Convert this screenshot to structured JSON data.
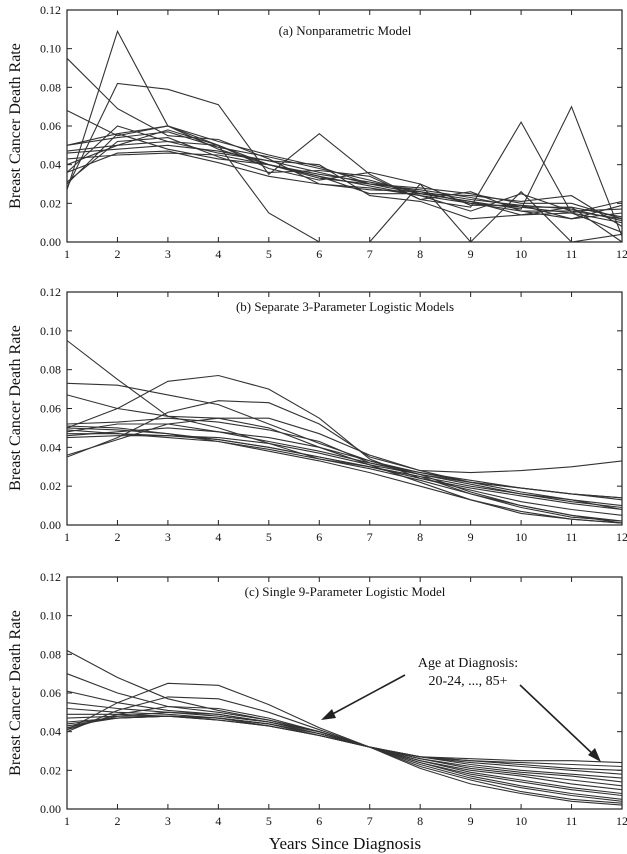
{
  "chart_data": [
    {
      "type": "line",
      "title": "(a)  Nonparametric Model",
      "ylabel": "Breast Cancer Death Rate",
      "xlabel": "",
      "x": [
        1,
        2,
        3,
        4,
        5,
        6,
        7,
        8,
        9,
        10,
        11,
        12
      ],
      "xlim": [
        1,
        12
      ],
      "ylim": [
        0,
        0.12
      ],
      "yticks": [
        "0.00",
        "0.02",
        "0.04",
        "0.06",
        "0.08",
        "0.10",
        "0.12"
      ],
      "grid": false,
      "series": [
        {
          "values": [
            0.027,
            0.109,
            0.06,
            0.05,
            0.015,
            0.0,
            0.0,
            0.03,
            0.0,
            0.026,
            0.0,
            0.004
          ]
        },
        {
          "values": [
            0.095,
            0.069,
            0.055,
            0.053,
            0.043,
            0.03,
            0.027,
            0.026,
            0.02,
            0.018,
            0.015,
            0.005
          ]
        },
        {
          "values": [
            0.028,
            0.082,
            0.079,
            0.071,
            0.035,
            0.056,
            0.035,
            0.022,
            0.018,
            0.062,
            0.015,
            0.021
          ]
        },
        {
          "values": [
            0.068,
            0.055,
            0.06,
            0.048,
            0.04,
            0.033,
            0.03,
            0.025,
            0.021,
            0.017,
            0.07,
            0.003
          ]
        },
        {
          "values": [
            0.036,
            0.06,
            0.052,
            0.046,
            0.042,
            0.04,
            0.024,
            0.021,
            0.012,
            0.014,
            0.015,
            0.01
          ]
        },
        {
          "values": [
            0.05,
            0.056,
            0.06,
            0.052,
            0.045,
            0.039,
            0.03,
            0.028,
            0.025,
            0.02,
            0.02,
            0.012
          ]
        },
        {
          "values": [
            0.04,
            0.05,
            0.058,
            0.05,
            0.038,
            0.032,
            0.036,
            0.03,
            0.019,
            0.019,
            0.012,
            0.015
          ]
        },
        {
          "values": [
            0.046,
            0.048,
            0.05,
            0.047,
            0.042,
            0.036,
            0.03,
            0.027,
            0.023,
            0.018,
            0.018,
            0.013
          ]
        },
        {
          "values": [
            0.043,
            0.045,
            0.046,
            0.045,
            0.04,
            0.035,
            0.031,
            0.026,
            0.022,
            0.019,
            0.017,
            0.011
          ]
        },
        {
          "values": [
            0.05,
            0.054,
            0.057,
            0.049,
            0.044,
            0.038,
            0.032,
            0.025,
            0.024,
            0.021,
            0.024,
            0.008
          ]
        },
        {
          "values": [
            0.031,
            0.052,
            0.054,
            0.044,
            0.036,
            0.037,
            0.034,
            0.022,
            0.026,
            0.016,
            0.016,
            0.017
          ]
        },
        {
          "values": [
            0.047,
            0.05,
            0.052,
            0.05,
            0.04,
            0.034,
            0.029,
            0.024,
            0.02,
            0.016,
            0.012,
            0.019
          ]
        },
        {
          "values": [
            0.036,
            0.046,
            0.047,
            0.041,
            0.034,
            0.03,
            0.028,
            0.024,
            0.016,
            0.025,
            0.016,
            0.012
          ]
        },
        {
          "values": [
            0.03,
            0.056,
            0.048,
            0.043,
            0.04,
            0.034,
            0.025,
            0.025,
            0.021,
            0.014,
            0.018,
            0.0
          ]
        }
      ]
    },
    {
      "type": "line",
      "title": "(b)  Separate 3-Parameter Logistic Models",
      "ylabel": "Breast Cancer Death Rate",
      "xlabel": "",
      "x": [
        1,
        2,
        3,
        4,
        5,
        6,
        7,
        8,
        9,
        10,
        11,
        12
      ],
      "xlim": [
        1,
        12
      ],
      "ylim": [
        0,
        0.12
      ],
      "yticks": [
        "0.00",
        "0.02",
        "0.04",
        "0.06",
        "0.08",
        "0.10",
        "0.12"
      ],
      "grid": false,
      "series": [
        {
          "values": [
            0.095,
            0.075,
            0.056,
            0.05,
            0.042,
            0.034,
            0.03,
            0.025,
            0.016,
            0.01,
            0.005,
            0.002
          ]
        },
        {
          "values": [
            0.073,
            0.072,
            0.067,
            0.062,
            0.052,
            0.042,
            0.033,
            0.026,
            0.017,
            0.01,
            0.005,
            0.001
          ]
        },
        {
          "values": [
            0.067,
            0.06,
            0.056,
            0.055,
            0.05,
            0.04,
            0.031,
            0.022,
            0.013,
            0.007,
            0.003,
            0.001
          ]
        },
        {
          "values": [
            0.05,
            0.06,
            0.074,
            0.077,
            0.07,
            0.055,
            0.034,
            0.024,
            0.018,
            0.012,
            0.008,
            0.005
          ]
        },
        {
          "values": [
            0.035,
            0.045,
            0.058,
            0.064,
            0.063,
            0.052,
            0.035,
            0.028,
            0.027,
            0.028,
            0.03,
            0.033
          ]
        },
        {
          "values": [
            0.036,
            0.044,
            0.052,
            0.055,
            0.055,
            0.047,
            0.036,
            0.028,
            0.022,
            0.019,
            0.016,
            0.014
          ]
        },
        {
          "values": [
            0.052,
            0.053,
            0.055,
            0.053,
            0.049,
            0.043,
            0.032,
            0.026,
            0.021,
            0.016,
            0.013,
            0.01
          ]
        },
        {
          "values": [
            0.048,
            0.052,
            0.052,
            0.048,
            0.043,
            0.038,
            0.032,
            0.027,
            0.022,
            0.017,
            0.013,
            0.008
          ]
        },
        {
          "values": [
            0.046,
            0.048,
            0.05,
            0.048,
            0.045,
            0.04,
            0.033,
            0.027,
            0.023,
            0.019,
            0.016,
            0.013
          ]
        },
        {
          "values": [
            0.047,
            0.047,
            0.046,
            0.045,
            0.042,
            0.037,
            0.031,
            0.026,
            0.022,
            0.019,
            0.016,
            0.014
          ]
        },
        {
          "values": [
            0.05,
            0.049,
            0.047,
            0.044,
            0.04,
            0.035,
            0.03,
            0.024,
            0.019,
            0.015,
            0.011,
            0.008
          ]
        },
        {
          "values": [
            0.045,
            0.046,
            0.046,
            0.044,
            0.04,
            0.035,
            0.03,
            0.025,
            0.02,
            0.016,
            0.012,
            0.009
          ]
        },
        {
          "values": [
            0.049,
            0.047,
            0.045,
            0.043,
            0.039,
            0.034,
            0.029,
            0.023,
            0.016,
            0.009,
            0.004,
            0.002
          ]
        },
        {
          "values": [
            0.051,
            0.05,
            0.047,
            0.043,
            0.038,
            0.033,
            0.027,
            0.02,
            0.013,
            0.006,
            0.003,
            0.001
          ]
        }
      ]
    },
    {
      "type": "line",
      "title": "(c)  Single 9-Parameter Logistic Model",
      "ylabel": "Breast Cancer Death Rate",
      "xlabel": "Years Since Diagnosis",
      "x": [
        1,
        2,
        3,
        4,
        5,
        6,
        7,
        8,
        9,
        10,
        11,
        12
      ],
      "xlim": [
        1,
        12
      ],
      "ylim": [
        0,
        0.12
      ],
      "yticks": [
        "0.00",
        "0.02",
        "0.04",
        "0.06",
        "0.08",
        "0.10",
        "0.12"
      ],
      "grid": false,
      "annotation": {
        "line1": "Age at Diagnosis:",
        "line2": "20-24, ..., 85+"
      },
      "series": [
        {
          "values": [
            0.082,
            0.068,
            0.057,
            0.051,
            0.046,
            0.04,
            0.032,
            0.027,
            0.026,
            0.025,
            0.025,
            0.024
          ]
        },
        {
          "values": [
            0.07,
            0.06,
            0.053,
            0.05,
            0.046,
            0.04,
            0.032,
            0.027,
            0.025,
            0.024,
            0.023,
            0.022
          ]
        },
        {
          "values": [
            0.061,
            0.055,
            0.051,
            0.049,
            0.045,
            0.04,
            0.032,
            0.027,
            0.025,
            0.023,
            0.021,
            0.02
          ]
        },
        {
          "values": [
            0.055,
            0.052,
            0.05,
            0.048,
            0.045,
            0.04,
            0.032,
            0.027,
            0.024,
            0.022,
            0.02,
            0.018
          ]
        },
        {
          "values": [
            0.052,
            0.05,
            0.049,
            0.047,
            0.044,
            0.039,
            0.032,
            0.027,
            0.023,
            0.02,
            0.018,
            0.016
          ]
        },
        {
          "values": [
            0.049,
            0.049,
            0.048,
            0.047,
            0.044,
            0.039,
            0.032,
            0.026,
            0.022,
            0.019,
            0.017,
            0.014
          ]
        },
        {
          "values": [
            0.047,
            0.048,
            0.048,
            0.047,
            0.043,
            0.038,
            0.032,
            0.026,
            0.021,
            0.018,
            0.015,
            0.012
          ]
        },
        {
          "values": [
            0.045,
            0.047,
            0.048,
            0.046,
            0.043,
            0.038,
            0.032,
            0.025,
            0.02,
            0.017,
            0.013,
            0.01
          ]
        },
        {
          "values": [
            0.044,
            0.047,
            0.048,
            0.046,
            0.043,
            0.038,
            0.032,
            0.025,
            0.019,
            0.015,
            0.011,
            0.008
          ]
        },
        {
          "values": [
            0.043,
            0.047,
            0.048,
            0.047,
            0.044,
            0.038,
            0.032,
            0.024,
            0.018,
            0.014,
            0.01,
            0.007
          ]
        },
        {
          "values": [
            0.042,
            0.048,
            0.05,
            0.049,
            0.045,
            0.039,
            0.032,
            0.024,
            0.017,
            0.012,
            0.008,
            0.005
          ]
        },
        {
          "values": [
            0.041,
            0.049,
            0.053,
            0.052,
            0.047,
            0.04,
            0.032,
            0.023,
            0.016,
            0.011,
            0.007,
            0.004
          ]
        },
        {
          "values": [
            0.04,
            0.051,
            0.058,
            0.057,
            0.05,
            0.041,
            0.032,
            0.022,
            0.015,
            0.009,
            0.005,
            0.003
          ]
        },
        {
          "values": [
            0.041,
            0.055,
            0.065,
            0.064,
            0.054,
            0.042,
            0.032,
            0.021,
            0.013,
            0.008,
            0.004,
            0.002
          ]
        }
      ]
    }
  ]
}
